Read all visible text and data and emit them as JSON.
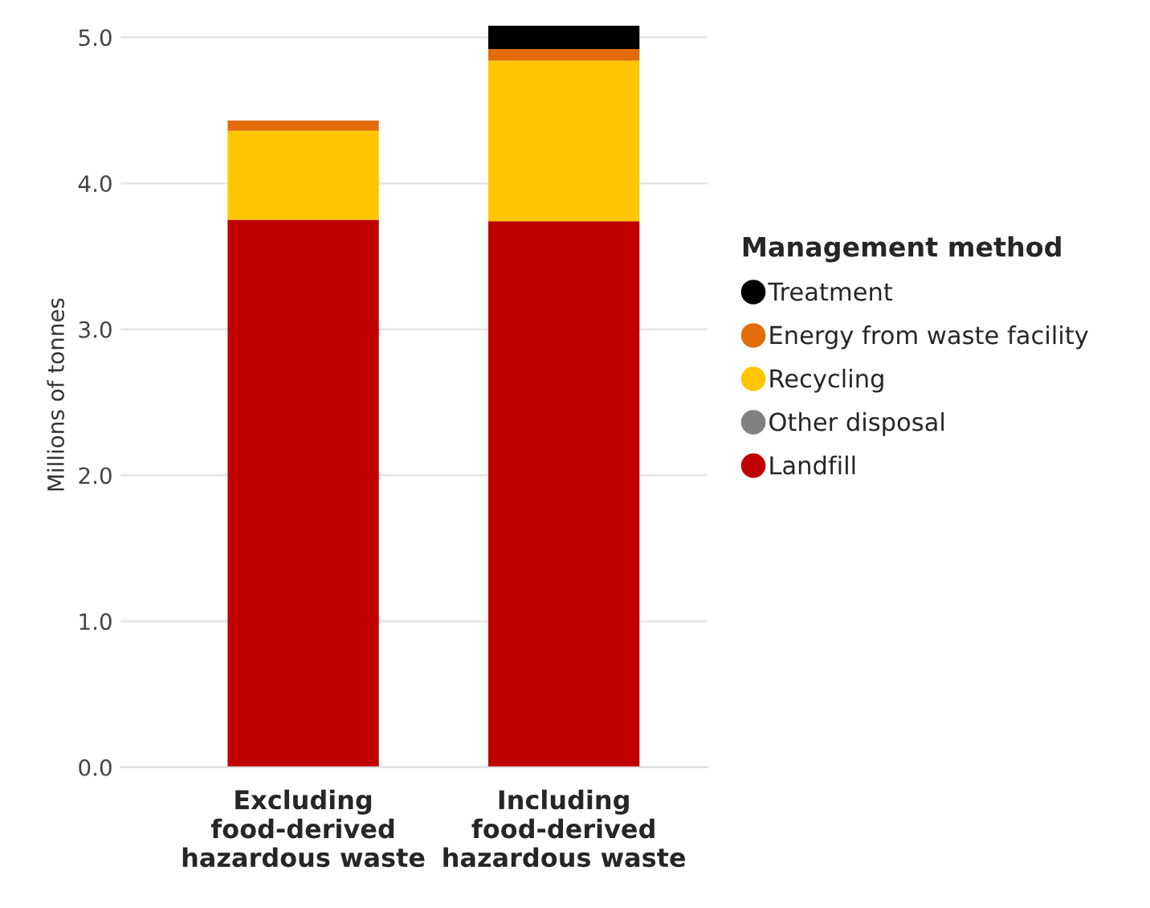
{
  "chart_data": {
    "type": "bar",
    "stacked": true,
    "ylabel": "Millions of tonnes",
    "legend_title": "Management method",
    "legend": "right",
    "grid": "y",
    "categories": [
      "Excluding\nfood-derived\nhazardous waste",
      "Including\nfood-derived\nhazardous waste"
    ],
    "series": [
      {
        "name": "Landfill",
        "color": "#c00000",
        "values": [
          3.75,
          3.74
        ]
      },
      {
        "name": "Other disposal",
        "color": "#808080",
        "values": [
          0,
          0
        ]
      },
      {
        "name": "Recycling",
        "color": "#ffc600",
        "values": [
          0.61,
          1.1
        ]
      },
      {
        "name": "Energy from waste facility",
        "color": "#e36c0a",
        "values": [
          0.07,
          0.08
        ]
      },
      {
        "name": "Treatment",
        "color": "#000000",
        "values": [
          0,
          0.16
        ]
      }
    ],
    "ylim": [
      0,
      5.1
    ],
    "yticks": [
      {
        "value": 0,
        "label": "0.0"
      },
      {
        "value": 1,
        "label": "1.0"
      },
      {
        "value": 2,
        "label": "2.0"
      },
      {
        "value": 3,
        "label": "3.0"
      },
      {
        "value": 4,
        "label": "4.0"
      },
      {
        "value": 5,
        "label": "5.0"
      }
    ]
  }
}
